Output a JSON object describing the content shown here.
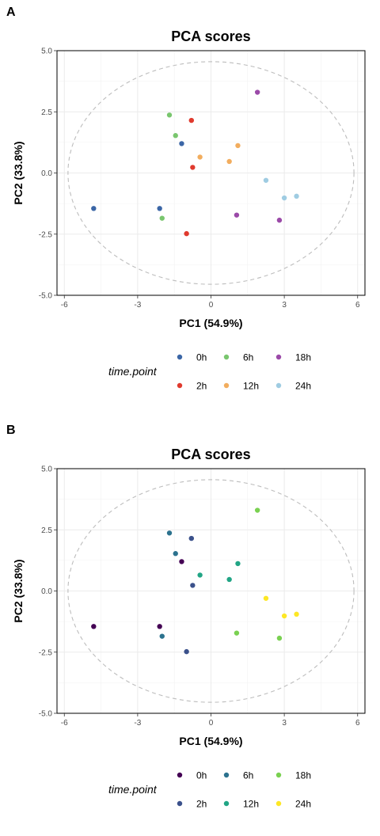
{
  "chart_data": [
    {
      "panel": "A",
      "type": "scatter",
      "title": "PCA scores",
      "xlabel": "PC1 (54.9%)",
      "ylabel": "PC2 (33.8%)",
      "xlim": [
        -6.3,
        6.3
      ],
      "ylim": [
        -5.0,
        5.0
      ],
      "xticks": [
        "-6",
        "-3",
        "0",
        "3",
        "6"
      ],
      "yticks": [
        "5.0",
        "2.5",
        "0.0",
        "-2.5",
        "-5.0"
      ],
      "grid": true,
      "legend_title": "time.point",
      "legend_position": "bottom",
      "ellipse": {
        "style": "dashed",
        "color": "#bdbdbd"
      },
      "series": [
        {
          "name": "0h",
          "color": "#3b66a6",
          "points": [
            [
              -4.8,
              -1.45
            ],
            [
              -2.1,
              -1.45
            ],
            [
              -1.2,
              1.2
            ]
          ]
        },
        {
          "name": "2h",
          "color": "#e03a2e",
          "points": [
            [
              -1.0,
              -2.48
            ],
            [
              -0.8,
              2.15
            ],
            [
              -0.75,
              0.23
            ]
          ]
        },
        {
          "name": "6h",
          "color": "#79c66e",
          "points": [
            [
              -2.0,
              -1.85
            ],
            [
              -1.7,
              2.37
            ],
            [
              -1.45,
              1.53
            ]
          ]
        },
        {
          "name": "12h",
          "color": "#f2ad5e",
          "points": [
            [
              -0.45,
              0.65
            ],
            [
              0.75,
              0.47
            ],
            [
              1.1,
              1.12
            ]
          ]
        },
        {
          "name": "18h",
          "color": "#9b4aa8",
          "points": [
            [
              1.05,
              -1.72
            ],
            [
              1.9,
              3.3
            ],
            [
              2.8,
              -1.93
            ]
          ]
        },
        {
          "name": "24h",
          "color": "#9fcce2",
          "points": [
            [
              2.25,
              -0.3
            ],
            [
              3.0,
              -1.02
            ],
            [
              3.5,
              -0.95
            ]
          ]
        }
      ]
    },
    {
      "panel": "B",
      "type": "scatter",
      "title": "PCA scores",
      "xlabel": "PC1 (54.9%)",
      "ylabel": "PC2 (33.8%)",
      "xlim": [
        -6.3,
        6.3
      ],
      "ylim": [
        -5.0,
        5.0
      ],
      "xticks": [
        "-6",
        "-3",
        "0",
        "3",
        "6"
      ],
      "yticks": [
        "5.0",
        "2.5",
        "0.0",
        "-2.5",
        "-5.0"
      ],
      "grid": true,
      "legend_title": "time.point",
      "legend_position": "bottom",
      "ellipse": {
        "style": "dashed",
        "color": "#bdbdbd"
      },
      "series": [
        {
          "name": "0h",
          "color": "#440154",
          "points": [
            [
              -4.8,
              -1.45
            ],
            [
              -2.1,
              -1.45
            ],
            [
              -1.2,
              1.2
            ]
          ]
        },
        {
          "name": "2h",
          "color": "#3b518b",
          "points": [
            [
              -1.0,
              -2.48
            ],
            [
              -0.8,
              2.15
            ],
            [
              -0.75,
              0.23
            ]
          ]
        },
        {
          "name": "6h",
          "color": "#2c728e",
          "points": [
            [
              -2.0,
              -1.85
            ],
            [
              -1.7,
              2.37
            ],
            [
              -1.45,
              1.53
            ]
          ]
        },
        {
          "name": "12h",
          "color": "#21a585",
          "points": [
            [
              -0.45,
              0.65
            ],
            [
              0.75,
              0.47
            ],
            [
              1.1,
              1.12
            ]
          ]
        },
        {
          "name": "18h",
          "color": "#7ad151",
          "points": [
            [
              1.05,
              -1.72
            ],
            [
              1.9,
              3.3
            ],
            [
              2.8,
              -1.93
            ]
          ]
        },
        {
          "name": "24h",
          "color": "#fde725",
          "points": [
            [
              2.25,
              -0.3
            ],
            [
              3.0,
              -1.02
            ],
            [
              3.5,
              -0.95
            ]
          ]
        }
      ]
    }
  ]
}
